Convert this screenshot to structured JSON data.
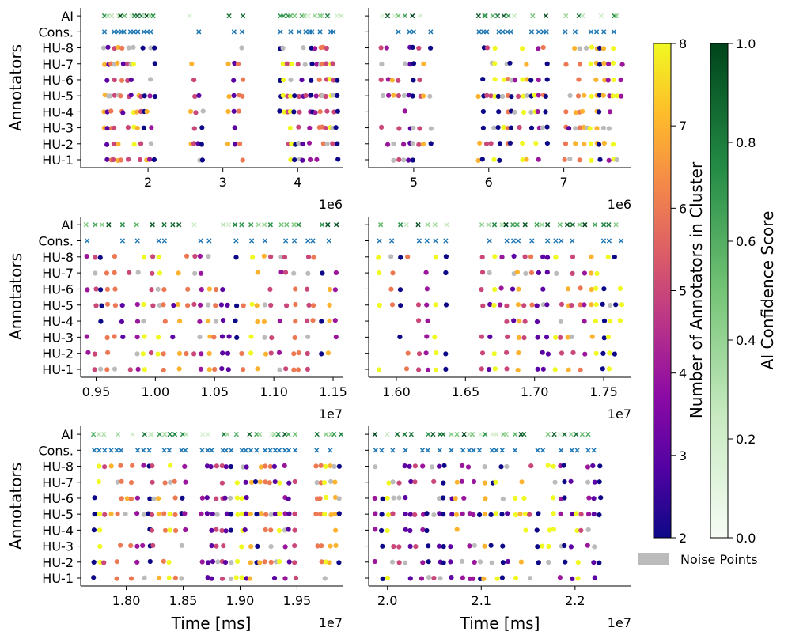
{
  "chart_data": {
    "type": "scatter",
    "y_axis_label": "Annotators",
    "x_axis_label": "Time [ms]",
    "rows": [
      "HU-1",
      "HU-2",
      "HU-3",
      "HU-4",
      "HU-5",
      "HU-6",
      "HU-7",
      "HU-8",
      "Cons.",
      "AI"
    ],
    "panels": [
      {
        "id": "p1",
        "xlim": [
          1100000,
          4600000
        ],
        "ticks": [
          2000000,
          3000000,
          4000000
        ],
        "tick_labels": [
          "2",
          "3",
          "4"
        ],
        "multiplier": "1e6",
        "xlabel": "",
        "seed": 11,
        "clusters": [
          [
            1400000,
            2100000,
            16
          ],
          [
            2550000,
            2750000,
            4
          ],
          [
            3050000,
            3300000,
            4
          ],
          [
            3750000,
            4600000,
            18
          ]
        ]
      },
      {
        "id": "p2",
        "xlim": [
          4400000,
          7900000
        ],
        "ticks": [
          5000000,
          6000000,
          7000000
        ],
        "tick_labels": [
          "5",
          "6",
          "7"
        ],
        "multiplier": "1e6",
        "xlabel": "",
        "seed": 23,
        "clusters": [
          [
            4550000,
            5250000,
            10
          ],
          [
            5850000,
            6800000,
            18
          ],
          [
            7000000,
            7800000,
            14
          ]
        ]
      },
      {
        "id": "p3",
        "xlim": [
          9370000,
          11580000
        ],
        "ticks": [
          9500000,
          10000000,
          10500000,
          11000000,
          11500000
        ],
        "tick_labels": [
          "0.95",
          "1.00",
          "1.05",
          "1.10",
          "1.15"
        ],
        "multiplier": "1e7",
        "xlabel": "",
        "seed": 37,
        "clusters": [
          [
            9400000,
            11550000,
            36
          ]
        ]
      },
      {
        "id": "p4",
        "xlim": [
          15800000,
          17700000
        ],
        "ticks": [
          16000000,
          16500000,
          17000000,
          17500000
        ],
        "tick_labels": [
          "1.60",
          "1.65",
          "1.70",
          "1.75"
        ],
        "multiplier": "1e7",
        "xlabel": "",
        "seed": 41,
        "clusters": [
          [
            15850000,
            16400000,
            8
          ],
          [
            16600000,
            17650000,
            24
          ]
        ]
      },
      {
        "id": "p5",
        "xlim": [
          17600000,
          19900000
        ],
        "ticks": [
          18000000,
          18500000,
          19000000,
          19500000
        ],
        "tick_labels": [
          "1.80",
          "1.85",
          "1.90",
          "1.95"
        ],
        "multiplier": "1e7",
        "xlabel": "Time [ms]",
        "seed": 53,
        "clusters": [
          [
            17700000,
            18550000,
            18
          ],
          [
            18650000,
            19500000,
            20
          ],
          [
            19650000,
            19900000,
            6
          ]
        ]
      },
      {
        "id": "p6",
        "xlim": [
          19800000,
          22600000
        ],
        "ticks": [
          20000000,
          21000000,
          22000000
        ],
        "tick_labels": [
          "2.0",
          "2.1",
          "2.2"
        ],
        "multiplier": "1e7",
        "xlabel": "Time [ms]",
        "seed": 67,
        "clusters": [
          [
            19850000,
            22300000,
            40
          ]
        ]
      }
    ],
    "colorbar_cluster": {
      "label": "Number of Annotators in Cluster",
      "range": [
        2,
        8
      ],
      "ticks": [
        "2",
        "3",
        "4",
        "5",
        "6",
        "7",
        "8"
      ],
      "colormap": "plasma"
    },
    "colorbar_ai": {
      "label": "AI Confidence Score",
      "range": [
        0,
        1
      ],
      "ticks": [
        "0.0",
        "0.2",
        "0.4",
        "0.6",
        "0.8",
        "1.0"
      ],
      "colormap": "greens"
    },
    "legend": {
      "label": "Noise Points",
      "color": "#bbbbbb"
    },
    "consensus_color": "#1f77b4",
    "noise_color": "#bbbbbb",
    "plasma_stops": [
      "#0d0887",
      "#5302a3",
      "#8b0aa5",
      "#b83289",
      "#db5c68",
      "#f48849",
      "#febc2a",
      "#f0f921"
    ],
    "greens_stops": [
      "#f7fcf5",
      "#c7e9c0",
      "#74c476",
      "#238b45",
      "#00441b"
    ]
  }
}
